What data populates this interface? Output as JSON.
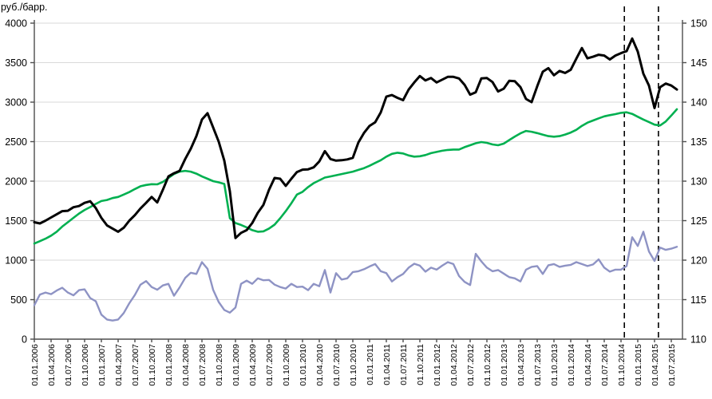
{
  "chart_data": {
    "type": "line",
    "title": "",
    "left_axis_title": "руб./барр.",
    "grid": "horizontal",
    "legend": "none",
    "x_start": "01.2006",
    "x_frequency": "monthly",
    "x_tick_every_months": 3,
    "x_tick_labels": [
      "01.01.2006",
      "01.04.2006",
      "01.07.2006",
      "01.10.2006",
      "01.01.2007",
      "01.04.2007",
      "01.07.2007",
      "01.10.2007",
      "01.01.2008",
      "01.04.2008",
      "01.07.2008",
      "01.10.2008",
      "01.01.2009",
      "01.04.2009",
      "01.07.2009",
      "01.10.2009",
      "01.01.2010",
      "01.04.2010",
      "01.07.2010",
      "01.10.2010",
      "01.01.2011",
      "01.04.2011",
      "01.07.2011",
      "01.10.2011",
      "01.01.2012",
      "01.04.2012",
      "01.07.2012",
      "01.10.2012",
      "01.01.2013",
      "01.04.2013",
      "01.07.2013",
      "01.10.2013",
      "01.01.2014",
      "01.04.2014",
      "01.07.2014",
      "01.10.2014",
      "01.01.2015",
      "01.04.2015",
      "01.07.2015"
    ],
    "left_axis": {
      "min": 0,
      "max": 4000,
      "step": 500,
      "tick_labels": [
        "4000",
        "3500",
        "3000",
        "2500",
        "2000",
        "1500",
        "1000",
        "500",
        "0"
      ]
    },
    "right_axis": {
      "min": 110,
      "max": 150,
      "step": 5,
      "tick_labels": [
        "150",
        "145",
        "140",
        "135",
        "130",
        "125",
        "120",
        "115",
        "110"
      ]
    },
    "vertical_dashed_lines": {
      "color": "#000000",
      "positions_month_index": [
        105.6,
        111.7
      ]
    },
    "colors": {
      "black_line": "#000000",
      "green_line": "#00B050",
      "purple_line": "#8E93C4",
      "gridline": "#d9d9d9",
      "axis": "#4d4d4d"
    },
    "series": [
      {
        "name": "black-line",
        "axis": "left",
        "color": "#000000",
        "width": 3,
        "values": [
          1480,
          1465,
          1500,
          1540,
          1580,
          1620,
          1625,
          1670,
          1685,
          1725,
          1745,
          1660,
          1535,
          1440,
          1400,
          1360,
          1410,
          1500,
          1570,
          1655,
          1725,
          1800,
          1730,
          1890,
          2060,
          2100,
          2130,
          2280,
          2410,
          2570,
          2780,
          2860,
          2680,
          2500,
          2260,
          1870,
          1280,
          1345,
          1380,
          1470,
          1600,
          1700,
          1890,
          2040,
          2030,
          1940,
          2030,
          2115,
          2145,
          2150,
          2175,
          2250,
          2380,
          2280,
          2260,
          2265,
          2275,
          2295,
          2490,
          2610,
          2700,
          2745,
          2870,
          3070,
          3090,
          3055,
          3025,
          3160,
          3250,
          3330,
          3275,
          3305,
          3250,
          3285,
          3320,
          3320,
          3300,
          3220,
          3095,
          3125,
          3300,
          3305,
          3255,
          3135,
          3170,
          3270,
          3265,
          3190,
          3040,
          3000,
          3200,
          3385,
          3430,
          3340,
          3395,
          3370,
          3410,
          3550,
          3685,
          3555,
          3575,
          3600,
          3590,
          3540,
          3590,
          3620,
          3645,
          3805,
          3640,
          3360,
          3210,
          2925,
          3190,
          3235,
          3210,
          3160
        ]
      },
      {
        "name": "green-line",
        "axis": "left",
        "color": "#00B050",
        "width": 2.6,
        "values": [
          1210,
          1240,
          1272,
          1310,
          1360,
          1425,
          1480,
          1535,
          1590,
          1635,
          1672,
          1712,
          1748,
          1762,
          1786,
          1800,
          1830,
          1862,
          1900,
          1935,
          1952,
          1962,
          1960,
          1990,
          2040,
          2090,
          2120,
          2130,
          2120,
          2095,
          2060,
          2030,
          2000,
          1985,
          1965,
          1530,
          1470,
          1445,
          1415,
          1380,
          1360,
          1365,
          1400,
          1450,
          1530,
          1620,
          1720,
          1830,
          1865,
          1925,
          1975,
          2010,
          2045,
          2060,
          2075,
          2090,
          2105,
          2120,
          2142,
          2165,
          2195,
          2230,
          2265,
          2310,
          2345,
          2360,
          2350,
          2325,
          2310,
          2315,
          2330,
          2355,
          2370,
          2385,
          2395,
          2400,
          2400,
          2430,
          2455,
          2480,
          2495,
          2485,
          2465,
          2455,
          2475,
          2520,
          2565,
          2605,
          2635,
          2625,
          2608,
          2588,
          2570,
          2563,
          2570,
          2590,
          2615,
          2650,
          2700,
          2740,
          2768,
          2795,
          2820,
          2835,
          2848,
          2865,
          2872,
          2852,
          2815,
          2780,
          2748,
          2715,
          2705,
          2755,
          2830,
          2910
        ]
      },
      {
        "name": "purple-line",
        "axis": "left",
        "color": "#8E93C4",
        "width": 2.4,
        "values": [
          430,
          565,
          590,
          570,
          615,
          650,
          590,
          555,
          620,
          630,
          520,
          480,
          310,
          248,
          235,
          248,
          330,
          455,
          560,
          690,
          735,
          660,
          625,
          680,
          700,
          550,
          655,
          775,
          840,
          825,
          975,
          890,
          625,
          470,
          370,
          335,
          400,
          700,
          740,
          700,
          770,
          745,
          750,
          690,
          660,
          640,
          700,
          660,
          665,
          620,
          700,
          670,
          875,
          590,
          835,
          755,
          770,
          850,
          860,
          885,
          920,
          950,
          860,
          835,
          730,
          785,
          825,
          905,
          955,
          930,
          855,
          905,
          880,
          930,
          975,
          950,
          800,
          725,
          685,
          1080,
          985,
          905,
          860,
          875,
          830,
          785,
          770,
          730,
          880,
          915,
          925,
          825,
          935,
          950,
          915,
          930,
          940,
          975,
          950,
          925,
          945,
          1010,
          905,
          855,
          880,
          880,
          925,
          1290,
          1180,
          1360,
          1110,
          990,
          1160,
          1130,
          1145,
          1170
        ]
      }
    ]
  }
}
